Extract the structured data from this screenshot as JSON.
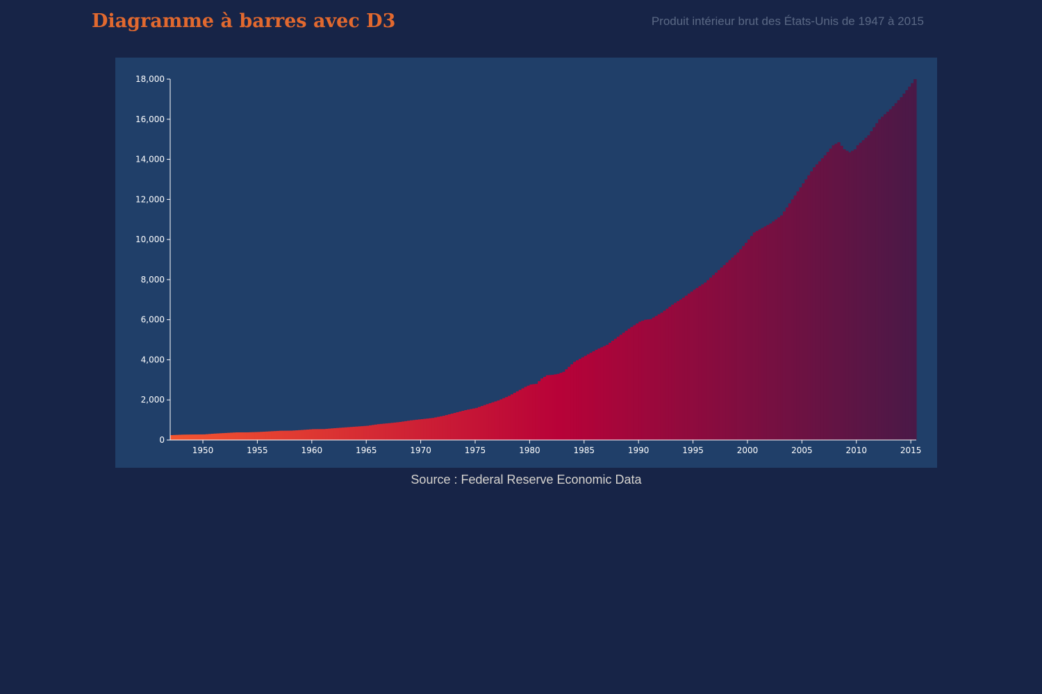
{
  "header": {
    "title": "Diagramme à barres avec D3",
    "subtitle": "Produit intérieur brut des États-Unis de 1947 à 2015"
  },
  "footer": {
    "source": "Source : Federal Reserve Economic Data"
  },
  "colors": {
    "page_background": "#172447",
    "panel_background": "#203f69",
    "title": "#e2692f",
    "subtitle": "#5b6985",
    "bar_start": "#f3552f",
    "bar_mid": "#b80238",
    "bar_end": "#4a1947",
    "axis": "#ffffff"
  },
  "chart_data": {
    "type": "bar",
    "title": "Diagramme à barres avec D3",
    "subtitle": "Produit intérieur brut des États-Unis de 1947 à 2015",
    "xlabel": "",
    "ylabel": "",
    "xlim": [
      1947.0,
      2015.5
    ],
    "ylim": [
      0,
      18000
    ],
    "y_ticks": [
      0,
      2000,
      4000,
      6000,
      8000,
      10000,
      12000,
      14000,
      16000,
      18000
    ],
    "y_tick_labels": [
      "0",
      "2,000",
      "4,000",
      "6,000",
      "8,000",
      "10,000",
      "12,000",
      "14,000",
      "16,000",
      "18,000"
    ],
    "x_ticks": [
      1950,
      1955,
      1960,
      1965,
      1970,
      1975,
      1980,
      1985,
      1990,
      1995,
      2000,
      2005,
      2010,
      2015
    ],
    "x_tick_labels": [
      "1950",
      "1955",
      "1960",
      "1965",
      "1970",
      "1975",
      "1980",
      "1985",
      "1990",
      "1995",
      "2000",
      "2005",
      "2010",
      "2015"
    ],
    "frequency": "quarterly",
    "start_year": 1947,
    "anchor_points": [
      [
        1947.0,
        243
      ],
      [
        1948.0,
        266
      ],
      [
        1949.0,
        275
      ],
      [
        1950.0,
        280
      ],
      [
        1951.0,
        320
      ],
      [
        1952.0,
        350
      ],
      [
        1953.0,
        380
      ],
      [
        1954.0,
        382
      ],
      [
        1955.0,
        400
      ],
      [
        1956.0,
        430
      ],
      [
        1957.0,
        460
      ],
      [
        1958.0,
        465
      ],
      [
        1959.0,
        500
      ],
      [
        1960.0,
        540
      ],
      [
        1961.0,
        545
      ],
      [
        1962.0,
        590
      ],
      [
        1963.0,
        630
      ],
      [
        1964.0,
        670
      ],
      [
        1965.0,
        710
      ],
      [
        1966.0,
        790
      ],
      [
        1967.0,
        840
      ],
      [
        1968.0,
        900
      ],
      [
        1969.0,
        980
      ],
      [
        1970.0,
        1040
      ],
      [
        1971.0,
        1100
      ],
      [
        1972.0,
        1210
      ],
      [
        1973.0,
        1350
      ],
      [
        1974.0,
        1490
      ],
      [
        1975.0,
        1600
      ],
      [
        1976.0,
        1790
      ],
      [
        1977.0,
        1970
      ],
      [
        1978.0,
        2200
      ],
      [
        1979.0,
        2500
      ],
      [
        1979.5,
        2650
      ],
      [
        1980.0,
        2770
      ],
      [
        1980.5,
        2800
      ],
      [
        1981.0,
        3070
      ],
      [
        1981.5,
        3230
      ],
      [
        1982.0,
        3250
      ],
      [
        1982.5,
        3300
      ],
      [
        1983.0,
        3400
      ],
      [
        1984.0,
        3900
      ],
      [
        1985.0,
        4200
      ],
      [
        1986.0,
        4500
      ],
      [
        1987.0,
        4750
      ],
      [
        1988.0,
        5150
      ],
      [
        1989.0,
        5550
      ],
      [
        1990.0,
        5900
      ],
      [
        1990.5,
        6000
      ],
      [
        1991.0,
        6030
      ],
      [
        1992.0,
        6350
      ],
      [
        1993.0,
        6750
      ],
      [
        1994.0,
        7100
      ],
      [
        1995.0,
        7500
      ],
      [
        1996.0,
        7850
      ],
      [
        1997.0,
        8350
      ],
      [
        1998.0,
        8850
      ],
      [
        1999.0,
        9350
      ],
      [
        2000.0,
        10000
      ],
      [
        2000.5,
        10350
      ],
      [
        2001.0,
        10500
      ],
      [
        2002.0,
        10800
      ],
      [
        2003.0,
        11200
      ],
      [
        2004.0,
        12000
      ],
      [
        2005.0,
        12800
      ],
      [
        2006.0,
        13600
      ],
      [
        2007.0,
        14200
      ],
      [
        2007.75,
        14700
      ],
      [
        2008.25,
        14850
      ],
      [
        2008.75,
        14500
      ],
      [
        2009.25,
        14350
      ],
      [
        2009.75,
        14500
      ],
      [
        2010.0,
        14700
      ],
      [
        2011.0,
        15200
      ],
      [
        2012.0,
        16000
      ],
      [
        2013.0,
        16500
      ],
      [
        2014.0,
        17100
      ],
      [
        2015.0,
        17800
      ],
      [
        2015.25,
        18000
      ]
    ]
  }
}
